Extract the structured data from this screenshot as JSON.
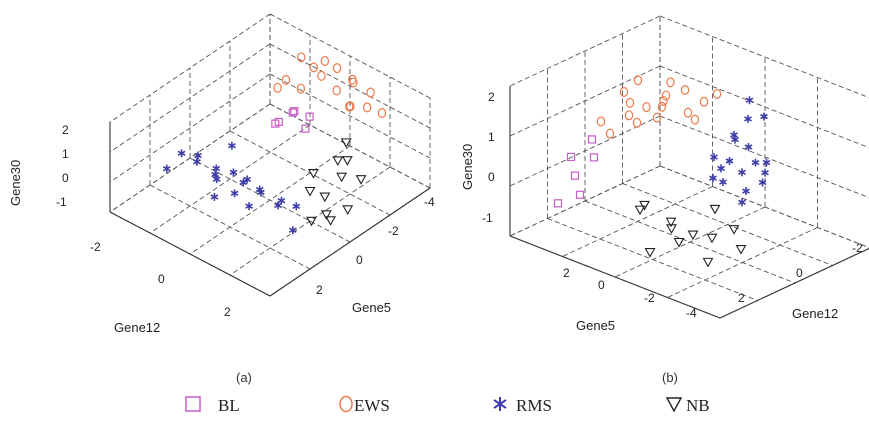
{
  "legend": [
    {
      "label": "BL",
      "marker": "square",
      "color": "#c55fc5"
    },
    {
      "label": "EWS",
      "marker": "circle",
      "color": "#ee7a4c"
    },
    {
      "label": "RMS",
      "marker": "asterisk",
      "color": "#3e3ea8"
    },
    {
      "label": "NB",
      "marker": "triangle-down",
      "color": "#222222"
    }
  ],
  "chart_data": [
    {
      "type": "scatter",
      "panel_label": "(a)",
      "axes": {
        "x": {
          "label": "Gene12",
          "ticks": [
            "-2",
            "0",
            "2"
          ],
          "range": [
            -3,
            3
          ]
        },
        "y": {
          "label": "Gene5",
          "ticks": [
            "2",
            "0",
            "-2",
            "-4"
          ],
          "range": [
            -4,
            3
          ]
        },
        "z": {
          "label": "Gene30",
          "ticks": [
            "2",
            "1",
            "0",
            "-1"
          ],
          "range": [
            -1,
            2
          ]
        }
      },
      "grid": true,
      "series": [
        {
          "name": "BL",
          "marker": "square",
          "color": "#c55fc5",
          "points": [
            [
              -0.2,
              -1.8,
              1.2
            ],
            [
              0,
              -1.5,
              1.4
            ],
            [
              -0.4,
              -1.2,
              1.0
            ],
            [
              0.2,
              -2.0,
              1.1
            ],
            [
              -0.1,
              -1.0,
              1.3
            ],
            [
              0.3,
              -1.7,
              0.9
            ]
          ]
        },
        {
          "name": "EWS",
          "marker": "circle",
          "color": "#ee7a4c",
          "points": [
            [
              -0.8,
              -2.8,
              2.2
            ],
            [
              -0.5,
              -3.0,
              1.9
            ],
            [
              0.2,
              -3.2,
              2.1
            ],
            [
              0.6,
              -3.4,
              1.8
            ],
            [
              0.9,
              -3.1,
              2.0
            ],
            [
              1.2,
              -3.5,
              1.6
            ],
            [
              1.5,
              -3.0,
              1.5
            ],
            [
              0.7,
              -2.6,
              1.9
            ],
            [
              0.3,
              -2.4,
              2.3
            ],
            [
              -0.3,
              -2.2,
              1.7
            ],
            [
              1.0,
              -2.8,
              1.4
            ],
            [
              1.8,
              -3.3,
              1.3
            ],
            [
              -1.0,
              -2.0,
              1.5
            ],
            [
              0.0,
              -2.9,
              2.4
            ],
            [
              1.3,
              -2.5,
              1.7
            ],
            [
              -0.6,
              -1.9,
              2.0
            ]
          ]
        },
        {
          "name": "RMS",
          "marker": "asterisk",
          "color": "#3e3ea8",
          "points": [
            [
              -2.2,
              0.8,
              0.2
            ],
            [
              -1.8,
              0.6,
              0.0
            ],
            [
              -1.5,
              0.9,
              0.5
            ],
            [
              -1.2,
              0.5,
              -0.2
            ],
            [
              -0.9,
              0.8,
              0.3
            ],
            [
              -0.6,
              0.4,
              0.1
            ],
            [
              -0.3,
              0.7,
              -0.3
            ],
            [
              0.0,
              0.5,
              0.2
            ],
            [
              0.3,
              0.3,
              -0.1
            ],
            [
              0.6,
              0.6,
              0.1
            ],
            [
              0.9,
              0.2,
              -0.4
            ],
            [
              1.2,
              0.4,
              0.0
            ],
            [
              -1.4,
              0.2,
              -0.6
            ],
            [
              -0.8,
              1.0,
              -0.5
            ],
            [
              0.2,
              0.9,
              0.4
            ],
            [
              1.5,
              0.1,
              -0.2
            ],
            [
              -2.5,
              1.1,
              -0.3
            ],
            [
              -1.0,
              0.0,
              0.6
            ],
            [
              0.5,
              1.0,
              -0.2
            ],
            [
              1.8,
              0.6,
              -0.6
            ]
          ]
        },
        {
          "name": "NB",
          "marker": "triangle-down",
          "color": "#222222",
          "points": [
            [
              1.2,
              -1.0,
              0.2
            ],
            [
              1.5,
              -0.5,
              0.0
            ],
            [
              1.8,
              -0.8,
              -0.2
            ],
            [
              2.0,
              -1.3,
              0.3
            ],
            [
              1.6,
              -1.6,
              0.5
            ],
            [
              2.2,
              -0.4,
              -0.4
            ],
            [
              1.9,
              -0.1,
              -0.6
            ],
            [
              2.3,
              -1.8,
              0.1
            ],
            [
              1.4,
              -2.2,
              0.7
            ],
            [
              2.1,
              -0.7,
              -0.8
            ],
            [
              2.4,
              -1.1,
              -0.5
            ],
            [
              1.7,
              -1.9,
              0.4
            ]
          ]
        }
      ]
    },
    {
      "type": "scatter",
      "panel_label": "(b)",
      "axes": {
        "x": {
          "label": "Gene5",
          "ticks": [
            "2",
            "0",
            "-2",
            "-4"
          ],
          "range": [
            -4,
            3
          ]
        },
        "y": {
          "label": "Gene12",
          "ticks": [
            "2",
            "0",
            "-2"
          ],
          "range": [
            -3,
            3
          ]
        },
        "z": {
          "label": "Gene30",
          "ticks": [
            "2",
            "1",
            "0",
            "-1"
          ],
          "range": [
            -1,
            2.5
          ]
        }
      },
      "grid": true,
      "series": [
        {
          "name": "BL",
          "marker": "square",
          "color": "#c55fc5",
          "points": [
            [
              -3.2,
              0.6,
              0.4
            ],
            [
              -3.5,
              1.0,
              0.0
            ],
            [
              -3.0,
              1.4,
              -0.2
            ],
            [
              -3.8,
              0.8,
              0.3
            ],
            [
              -3.4,
              1.8,
              -0.4
            ],
            [
              -3.6,
              0.2,
              0.6
            ]
          ]
        },
        {
          "name": "EWS",
          "marker": "circle",
          "color": "#ee7a4c",
          "points": [
            [
              -1.5,
              -1.0,
              2.0
            ],
            [
              -1.8,
              -0.5,
              1.8
            ],
            [
              -2.1,
              -0.8,
              1.5
            ],
            [
              -2.4,
              -0.2,
              2.2
            ],
            [
              -1.2,
              -1.4,
              1.7
            ],
            [
              -2.7,
              0.0,
              1.9
            ],
            [
              -3.0,
              -0.6,
              1.4
            ],
            [
              -1.9,
              -1.6,
              1.2
            ],
            [
              -2.2,
              0.4,
              1.6
            ],
            [
              -2.6,
              -1.2,
              1.0
            ],
            [
              -1.4,
              -0.3,
              2.4
            ],
            [
              -3.3,
              0.2,
              1.1
            ],
            [
              -2.0,
              -2.0,
              0.9
            ],
            [
              -2.8,
              -1.8,
              1.3
            ],
            [
              -1.6,
              -2.4,
              1.5
            ],
            [
              -3.1,
              -1.0,
              0.8
            ],
            [
              -2.5,
              0.8,
              1.2
            ],
            [
              -1.7,
              0.3,
              1.9
            ]
          ]
        },
        {
          "name": "RMS",
          "marker": "asterisk",
          "color": "#3e3ea8",
          "points": [
            [
              0.6,
              -1.0,
              1.9
            ],
            [
              0.3,
              -0.8,
              1.5
            ],
            [
              0.0,
              -1.2,
              1.2
            ],
            [
              0.4,
              -0.5,
              1.0
            ],
            [
              0.8,
              -1.5,
              0.8
            ],
            [
              0.1,
              -0.2,
              0.6
            ],
            [
              0.5,
              -1.8,
              0.4
            ],
            [
              0.9,
              -0.4,
              0.2
            ],
            [
              0.2,
              -1.4,
              0.0
            ],
            [
              0.7,
              -0.9,
              1.3
            ],
            [
              -0.2,
              -0.6,
              0.9
            ],
            [
              1.0,
              -1.1,
              0.5
            ],
            [
              0.3,
              -2.0,
              1.6
            ],
            [
              -0.1,
              -1.6,
              0.3
            ],
            [
              0.6,
              0.0,
              0.7
            ],
            [
              1.1,
              -0.7,
              1.1
            ],
            [
              0.4,
              -1.3,
              2.2
            ],
            [
              -0.3,
              -1.0,
              0.5
            ]
          ]
        },
        {
          "name": "NB",
          "marker": "triangle-down",
          "color": "#222222",
          "points": [
            [
              0.8,
              -0.2,
              -0.4
            ],
            [
              0.4,
              0.2,
              -0.6
            ],
            [
              0.0,
              -0.4,
              -0.2
            ],
            [
              -0.4,
              0.0,
              -0.8
            ],
            [
              -0.8,
              0.4,
              -0.5
            ],
            [
              -1.2,
              -0.1,
              -0.9
            ],
            [
              -1.6,
              0.5,
              -0.3
            ],
            [
              0.6,
              0.6,
              -1.0
            ],
            [
              -0.2,
              0.8,
              -0.7
            ],
            [
              -1.0,
              1.0,
              -1.1
            ],
            [
              1.2,
              0.0,
              -0.7
            ],
            [
              -2.0,
              0.2,
              -0.6
            ]
          ]
        }
      ]
    }
  ]
}
